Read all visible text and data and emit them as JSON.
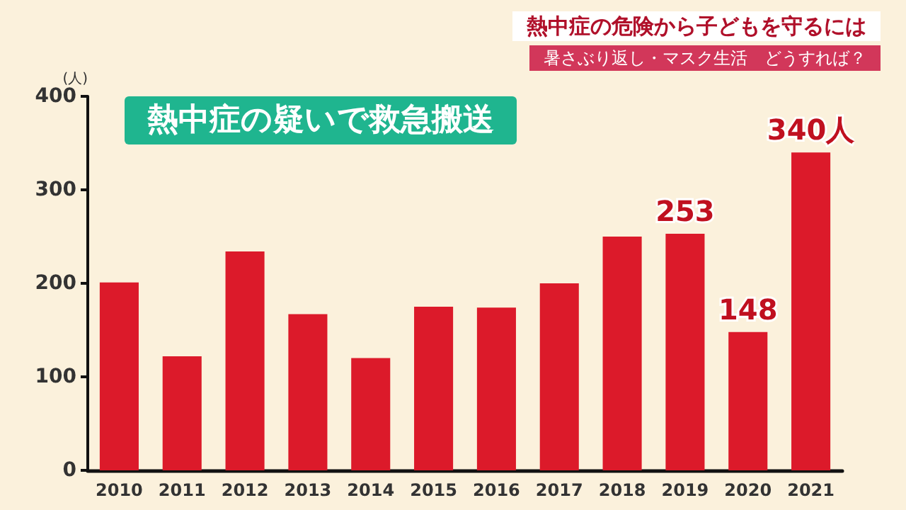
{
  "chart_data": {
    "type": "bar",
    "title": "熱中症の疑いで救急搬送",
    "annotations": [
      "熱中症の危険から子どもを守るには",
      "暑さぶり返し・マスク生活　どうすれば？"
    ],
    "ylabel": "(人)",
    "categories": [
      "2010",
      "2011",
      "2012",
      "2013",
      "2014",
      "2015",
      "2016",
      "2017",
      "2018",
      "2019",
      "2020",
      "2021"
    ],
    "values": [
      201,
      122,
      234,
      167,
      120,
      175,
      174,
      200,
      250,
      253,
      148,
      340
    ],
    "value_labels": [
      null,
      null,
      null,
      null,
      null,
      null,
      null,
      null,
      null,
      "253",
      "148",
      "340人"
    ],
    "color": "#dc1a2a",
    "ylim": [
      0,
      400
    ],
    "yticks": [
      0,
      100,
      200,
      300,
      400
    ],
    "grid": false
  }
}
